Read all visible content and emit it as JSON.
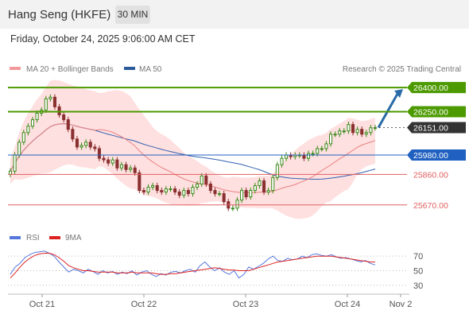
{
  "header": {
    "title": "Hang Seng (HKFE)",
    "timeframe": "30 MIN"
  },
  "datetime": "Friday, October 24, 2025 9:06:00 AM CET",
  "legend": {
    "ma20": "MA 20 + Bollinger Bands",
    "ma50": "MA 50",
    "credit": "Research © 2025 Trading Central",
    "rsi": "RSI",
    "rsi_ma": "9MA"
  },
  "colors": {
    "resistance": "#4c9a00",
    "support": "#e06060",
    "pivot": "#2060c0",
    "current": "#333333",
    "candle_up": "#3a8a1a",
    "candle_down": "#8b3030",
    "bollinger": "#ffd6d6",
    "ma20": "#e88080",
    "ma50": "#3060b0",
    "rsi": "#5577dd",
    "rsi_ma": "#dd2222",
    "arrow": "#2a6aa8"
  },
  "chart_data": [
    {
      "type": "candlestick",
      "instrument": "Hang Seng (HKFE)",
      "timeframe": "30 MIN",
      "x_ticks": [
        "Oct 21",
        "Oct 22",
        "Oct 23",
        "Oct 24",
        "Nov 2"
      ],
      "levels": [
        {
          "label": "26400.00",
          "value": 26400,
          "kind": "resistance"
        },
        {
          "label": "26250.00",
          "value": 26250,
          "kind": "resistance"
        },
        {
          "label": "26151.00",
          "value": 26151,
          "kind": "current"
        },
        {
          "label": "25980.00",
          "value": 25980,
          "kind": "pivot"
        },
        {
          "label": "25860.00",
          "value": 25860,
          "kind": "support"
        },
        {
          "label": "25670.00",
          "value": 25670,
          "kind": "support"
        }
      ],
      "ylim": [
        25560,
        26450
      ],
      "close_series": [
        25880,
        25980,
        26060,
        26120,
        26160,
        26200,
        26240,
        26260,
        26330,
        26340,
        26280,
        26230,
        26200,
        26140,
        26080,
        26030,
        26040,
        26060,
        26030,
        26020,
        25960,
        25950,
        25930,
        25950,
        25900,
        25920,
        25890,
        25900,
        25870,
        25760,
        25750,
        25780,
        25790,
        25760,
        25750,
        25770,
        25770,
        25750,
        25730,
        25760,
        25740,
        25780,
        25800,
        25850,
        25800,
        25760,
        25740,
        25740,
        25690,
        25650,
        25650,
        25700,
        25760,
        25720,
        25760,
        25790,
        25820,
        25750,
        25760,
        25840,
        25920,
        25960,
        25980,
        25970,
        25980,
        25980,
        25960,
        25990,
        25990,
        26020,
        26020,
        26050,
        26110,
        26110,
        26130,
        26130,
        26170,
        26120,
        26140,
        26110,
        26120,
        26150,
        26151
      ],
      "trend_arrow": "up toward 26400.00"
    },
    {
      "type": "line",
      "name": "RSI panel",
      "series": [
        {
          "name": "RSI",
          "values": [
            45,
            55,
            60,
            68,
            72,
            75,
            76,
            77,
            74,
            70,
            62,
            55,
            48,
            52,
            50,
            47,
            52,
            49,
            45,
            50,
            47,
            49,
            45,
            48,
            46,
            50,
            44,
            48,
            50,
            45,
            42,
            46,
            44,
            48,
            49,
            47,
            50,
            52,
            48,
            57,
            62,
            55,
            50,
            54,
            48,
            45,
            50,
            40,
            45,
            55,
            52,
            56,
            60,
            66,
            70,
            64,
            63,
            67,
            65,
            66,
            70,
            68,
            72,
            73,
            71,
            70,
            72,
            69,
            67,
            68,
            66,
            64,
            62,
            64,
            60,
            58
          ]
        },
        {
          "name": "9MA",
          "values": [
            40,
            47,
            55,
            62,
            67,
            71,
            73,
            74,
            74,
            72,
            68,
            63,
            57,
            54,
            52,
            50,
            50,
            49,
            48,
            48,
            48,
            48,
            47,
            47,
            47,
            48,
            47,
            47,
            47,
            47,
            46,
            45,
            45,
            46,
            46,
            47,
            48,
            49,
            50,
            51,
            52,
            53,
            54,
            53,
            52,
            51,
            51,
            50,
            50,
            50,
            52,
            54,
            56,
            58,
            60,
            62,
            63,
            64,
            65,
            66,
            67,
            68,
            69,
            70,
            70,
            70,
            70,
            69,
            68,
            67,
            66,
            65,
            64,
            63,
            62,
            62
          ]
        }
      ],
      "y_ticks": [
        70,
        50,
        30
      ]
    }
  ]
}
